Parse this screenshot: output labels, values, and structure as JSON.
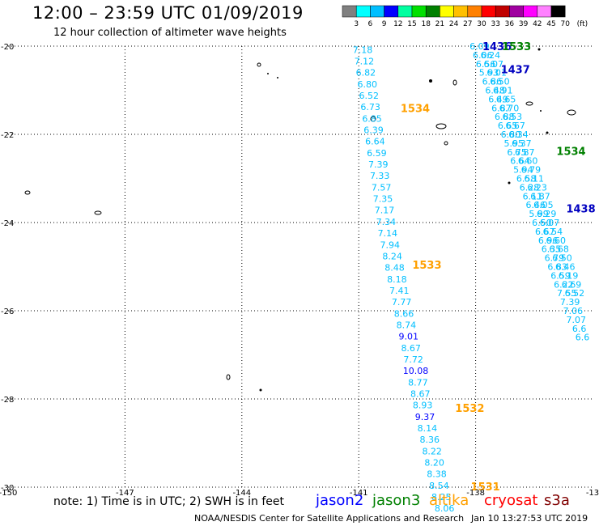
{
  "header": {
    "title": "12:00 – 23:59 UTC 01/09/2019",
    "subtitle": "12 hour collection of altimeter wave heights"
  },
  "colorbar": {
    "colors": [
      "#808080",
      "#00ffff",
      "#00bfff",
      "#0000ff",
      "#00ffa0",
      "#00e000",
      "#008000",
      "#ffff00",
      "#ffc000",
      "#ff8000",
      "#ff0000",
      "#c00000",
      "#a000a0",
      "#ff00ff",
      "#ff80ff",
      "#000000"
    ],
    "labels": [
      "3",
      "6",
      "9",
      "12",
      "15",
      "18",
      "21",
      "24",
      "27",
      "30",
      "33",
      "36",
      "39",
      "42",
      "45",
      "70",
      "(ft)"
    ]
  },
  "chart_data": {
    "type": "scatter",
    "x_ticks": [
      "-150",
      "-147",
      "-144",
      "-141",
      "-138",
      "-13"
    ],
    "y_ticks": [
      "-20",
      "-22",
      "-24",
      "-26",
      "-28",
      "-30"
    ],
    "xlim": [
      -150,
      -135
    ],
    "ylim": [
      -30,
      -20
    ],
    "grid": true,
    "track_points": [
      {
        "lon": -140.9,
        "lat": -20.08,
        "label": "7.18",
        "color": "#00bfff"
      },
      {
        "lon": -140.86,
        "lat": -20.34,
        "label": "7.12",
        "color": "#00bfff"
      },
      {
        "lon": -140.82,
        "lat": -20.6,
        "label": "6.82",
        "color": "#00bfff"
      },
      {
        "lon": -140.78,
        "lat": -20.86,
        "label": "6.80",
        "color": "#00bfff"
      },
      {
        "lon": -140.74,
        "lat": -21.12,
        "label": "6.52",
        "color": "#00bfff"
      },
      {
        "lon": -140.7,
        "lat": -21.38,
        "label": "6.73",
        "color": "#00bfff"
      },
      {
        "lon": -140.66,
        "lat": -21.64,
        "label": "6.85",
        "color": "#00bfff"
      },
      {
        "lon": -140.62,
        "lat": -21.9,
        "label": "6.39",
        "color": "#00bfff"
      },
      {
        "lon": -140.58,
        "lat": -22.16,
        "label": "6.64",
        "color": "#00bfff"
      },
      {
        "lon": -140.54,
        "lat": -22.42,
        "label": "6.59",
        "color": "#00bfff"
      },
      {
        "lon": -140.5,
        "lat": -22.68,
        "label": "7.39",
        "color": "#00bfff"
      },
      {
        "lon": -140.46,
        "lat": -22.94,
        "label": "7.33",
        "color": "#00bfff"
      },
      {
        "lon": -140.42,
        "lat": -23.2,
        "label": "7.57",
        "color": "#00bfff"
      },
      {
        "lon": -140.38,
        "lat": -23.46,
        "label": "7.35",
        "color": "#00bfff"
      },
      {
        "lon": -140.34,
        "lat": -23.72,
        "label": "7.17",
        "color": "#00bfff"
      },
      {
        "lon": -140.3,
        "lat": -23.98,
        "label": "7.34",
        "color": "#00bfff"
      },
      {
        "lon": -140.26,
        "lat": -24.24,
        "label": "7.14",
        "color": "#00bfff"
      },
      {
        "lon": -140.2,
        "lat": -24.5,
        "label": "7.94",
        "color": "#00bfff"
      },
      {
        "lon": -140.14,
        "lat": -24.76,
        "label": "8.24",
        "color": "#00bfff"
      },
      {
        "lon": -140.08,
        "lat": -25.02,
        "label": "8.48",
        "color": "#00bfff"
      },
      {
        "lon": -140.02,
        "lat": -25.28,
        "label": "8.18",
        "color": "#00bfff"
      },
      {
        "lon": -139.96,
        "lat": -25.54,
        "label": "7.41",
        "color": "#00bfff"
      },
      {
        "lon": -139.9,
        "lat": -25.8,
        "label": "7.77",
        "color": "#00bfff"
      },
      {
        "lon": -139.84,
        "lat": -26.06,
        "label": "8.66",
        "color": "#00bfff"
      },
      {
        "lon": -139.78,
        "lat": -26.32,
        "label": "8.74",
        "color": "#00bfff"
      },
      {
        "lon": -139.72,
        "lat": -26.58,
        "label": "9.01",
        "color": "#0000ff"
      },
      {
        "lon": -139.66,
        "lat": -26.84,
        "label": "8.67",
        "color": "#00bfff"
      },
      {
        "lon": -139.6,
        "lat": -27.1,
        "label": "7.72",
        "color": "#00bfff"
      },
      {
        "lon": -139.54,
        "lat": -27.36,
        "label": "10.08",
        "color": "#0000ff"
      },
      {
        "lon": -139.48,
        "lat": -27.62,
        "label": "8.77",
        "color": "#00bfff"
      },
      {
        "lon": -139.42,
        "lat": -27.88,
        "label": "8.67",
        "color": "#00bfff"
      },
      {
        "lon": -139.36,
        "lat": -28.14,
        "label": "8.93",
        "color": "#00bfff"
      },
      {
        "lon": -139.3,
        "lat": -28.4,
        "label": "9.37",
        "color": "#0000ff"
      },
      {
        "lon": -139.24,
        "lat": -28.66,
        "label": "8.14",
        "color": "#00bfff"
      },
      {
        "lon": -139.18,
        "lat": -28.92,
        "label": "8.36",
        "color": "#00bfff"
      },
      {
        "lon": -139.12,
        "lat": -29.18,
        "label": "8.22",
        "color": "#00bfff"
      },
      {
        "lon": -139.06,
        "lat": -29.44,
        "label": "8.20",
        "color": "#00bfff"
      },
      {
        "lon": -139.0,
        "lat": -29.7,
        "label": "8.38",
        "color": "#00bfff"
      },
      {
        "lon": -138.94,
        "lat": -29.96,
        "label": "8.54",
        "color": "#00bfff"
      },
      {
        "lon": -138.88,
        "lat": -30.22,
        "label": "8.25",
        "color": "#00bfff"
      },
      {
        "lon": -138.8,
        "lat": -30.48,
        "label": "8.06",
        "color": "#00bfff"
      },
      {
        "lon": -137.9,
        "lat": -20.0,
        "label": "6.09",
        "color": "#00bfff"
      },
      {
        "lon": -137.82,
        "lat": -20.2,
        "label": "6.06",
        "color": "#00bfff"
      },
      {
        "lon": -137.62,
        "lat": -20.2,
        "label": "6.24",
        "color": "#00bfff"
      },
      {
        "lon": -137.74,
        "lat": -20.4,
        "label": "6.56",
        "color": "#00bfff"
      },
      {
        "lon": -137.54,
        "lat": -20.4,
        "label": "6.07",
        "color": "#00bfff"
      },
      {
        "lon": -137.66,
        "lat": -20.6,
        "label": "5.93",
        "color": "#00bfff"
      },
      {
        "lon": -137.46,
        "lat": -20.6,
        "label": "6.01",
        "color": "#00bfff"
      },
      {
        "lon": -137.58,
        "lat": -20.8,
        "label": "6.86",
        "color": "#00bfff"
      },
      {
        "lon": -137.38,
        "lat": -20.8,
        "label": "6.50",
        "color": "#00bfff"
      },
      {
        "lon": -137.5,
        "lat": -21.0,
        "label": "6.48",
        "color": "#00bfff"
      },
      {
        "lon": -137.3,
        "lat": -21.0,
        "label": "6.91",
        "color": "#00bfff"
      },
      {
        "lon": -137.42,
        "lat": -21.2,
        "label": "6.49",
        "color": "#00bfff"
      },
      {
        "lon": -137.22,
        "lat": -21.2,
        "label": "6.65",
        "color": "#00bfff"
      },
      {
        "lon": -137.34,
        "lat": -21.4,
        "label": "6.87",
        "color": "#00bfff"
      },
      {
        "lon": -137.14,
        "lat": -21.4,
        "label": "6.70",
        "color": "#00bfff"
      },
      {
        "lon": -137.26,
        "lat": -21.6,
        "label": "6.88",
        "color": "#00bfff"
      },
      {
        "lon": -137.06,
        "lat": -21.6,
        "label": "6.53",
        "color": "#00bfff"
      },
      {
        "lon": -137.18,
        "lat": -21.8,
        "label": "6.65",
        "color": "#00bfff"
      },
      {
        "lon": -136.98,
        "lat": -21.8,
        "label": "6.67",
        "color": "#00bfff"
      },
      {
        "lon": -137.1,
        "lat": -22.0,
        "label": "6.80",
        "color": "#00bfff"
      },
      {
        "lon": -136.9,
        "lat": -22.0,
        "label": "6.34",
        "color": "#00bfff"
      },
      {
        "lon": -137.02,
        "lat": -22.2,
        "label": "5.95",
        "color": "#00bfff"
      },
      {
        "lon": -136.82,
        "lat": -22.2,
        "label": "6.37",
        "color": "#00bfff"
      },
      {
        "lon": -136.94,
        "lat": -22.4,
        "label": "6.75",
        "color": "#00bfff"
      },
      {
        "lon": -136.74,
        "lat": -22.4,
        "label": "6.87",
        "color": "#00bfff"
      },
      {
        "lon": -136.86,
        "lat": -22.6,
        "label": "6.64",
        "color": "#00bfff"
      },
      {
        "lon": -136.66,
        "lat": -22.6,
        "label": "6.60",
        "color": "#00bfff"
      },
      {
        "lon": -136.78,
        "lat": -22.8,
        "label": "5.94",
        "color": "#00bfff"
      },
      {
        "lon": -136.58,
        "lat": -22.8,
        "label": "6.79",
        "color": "#00bfff"
      },
      {
        "lon": -136.7,
        "lat": -23.0,
        "label": "6.58",
        "color": "#00bfff"
      },
      {
        "lon": -136.5,
        "lat": -23.0,
        "label": "6.11",
        "color": "#00bfff"
      },
      {
        "lon": -136.62,
        "lat": -23.2,
        "label": "6.28",
        "color": "#00bfff"
      },
      {
        "lon": -136.42,
        "lat": -23.2,
        "label": "6.23",
        "color": "#00bfff"
      },
      {
        "lon": -136.54,
        "lat": -23.4,
        "label": "6.11",
        "color": "#00bfff"
      },
      {
        "lon": -136.34,
        "lat": -23.4,
        "label": "6.87",
        "color": "#00bfff"
      },
      {
        "lon": -136.46,
        "lat": -23.6,
        "label": "6.46",
        "color": "#00bfff"
      },
      {
        "lon": -136.26,
        "lat": -23.6,
        "label": "6.05",
        "color": "#00bfff"
      },
      {
        "lon": -136.38,
        "lat": -23.8,
        "label": "5.99",
        "color": "#00bfff"
      },
      {
        "lon": -136.18,
        "lat": -23.8,
        "label": "6.29",
        "color": "#00bfff"
      },
      {
        "lon": -136.3,
        "lat": -24.0,
        "label": "6.50",
        "color": "#00bfff"
      },
      {
        "lon": -136.1,
        "lat": -24.0,
        "label": "6.07",
        "color": "#00bfff"
      },
      {
        "lon": -136.22,
        "lat": -24.2,
        "label": "6.67",
        "color": "#00bfff"
      },
      {
        "lon": -136.02,
        "lat": -24.2,
        "label": "6.54",
        "color": "#00bfff"
      },
      {
        "lon": -136.14,
        "lat": -24.4,
        "label": "6.96",
        "color": "#00bfff"
      },
      {
        "lon": -135.94,
        "lat": -24.4,
        "label": "6.60",
        "color": "#00bfff"
      },
      {
        "lon": -136.06,
        "lat": -24.6,
        "label": "6.35",
        "color": "#00bfff"
      },
      {
        "lon": -135.86,
        "lat": -24.6,
        "label": "6.68",
        "color": "#00bfff"
      },
      {
        "lon": -135.98,
        "lat": -24.8,
        "label": "6.79",
        "color": "#00bfff"
      },
      {
        "lon": -135.78,
        "lat": -24.8,
        "label": "6.50",
        "color": "#00bfff"
      },
      {
        "lon": -135.9,
        "lat": -25.0,
        "label": "6.83",
        "color": "#00bfff"
      },
      {
        "lon": -135.7,
        "lat": -25.0,
        "label": "6.46",
        "color": "#00bfff"
      },
      {
        "lon": -135.82,
        "lat": -25.2,
        "label": "6.59",
        "color": "#00bfff"
      },
      {
        "lon": -135.62,
        "lat": -25.2,
        "label": "6.19",
        "color": "#00bfff"
      },
      {
        "lon": -135.74,
        "lat": -25.4,
        "label": "6.22",
        "color": "#00bfff"
      },
      {
        "lon": -135.54,
        "lat": -25.4,
        "label": "6.69",
        "color": "#00bfff"
      },
      {
        "lon": -135.66,
        "lat": -25.6,
        "label": "7.55",
        "color": "#00bfff"
      },
      {
        "lon": -135.46,
        "lat": -25.6,
        "label": "6.52",
        "color": "#00bfff"
      },
      {
        "lon": -135.58,
        "lat": -25.8,
        "label": "7.39",
        "color": "#00bfff"
      },
      {
        "lon": -135.5,
        "lat": -26.0,
        "label": "7.06",
        "color": "#00bfff"
      },
      {
        "lon": -135.42,
        "lat": -26.2,
        "label": "7.07",
        "color": "#00bfff"
      },
      {
        "lon": -135.34,
        "lat": -26.4,
        "label": "6.6",
        "color": "#00bfff"
      },
      {
        "lon": -135.26,
        "lat": -26.6,
        "label": "6.6",
        "color": "#00bfff"
      }
    ],
    "pass_labels": [
      {
        "lon": -139.55,
        "lat": -21.4,
        "label": "1534",
        "color": "#ffa000"
      },
      {
        "lon": -139.25,
        "lat": -24.95,
        "label": "1533",
        "color": "#ffa000"
      },
      {
        "lon": -138.15,
        "lat": -28.2,
        "label": "1532",
        "color": "#ffa000"
      },
      {
        "lon": -137.75,
        "lat": -29.98,
        "label": "1531",
        "color": "#ffa000"
      },
      {
        "lon": -137.45,
        "lat": -20.0,
        "label": "1436",
        "color": "#0000c0"
      },
      {
        "lon": -136.95,
        "lat": -20.0,
        "label": "1533",
        "color": "#008000"
      },
      {
        "lon": -136.98,
        "lat": -20.52,
        "label": "1437",
        "color": "#0000c0"
      },
      {
        "lon": -135.55,
        "lat": -22.38,
        "label": "1534",
        "color": "#008000"
      },
      {
        "lon": -135.3,
        "lat": -23.68,
        "label": "1438",
        "color": "#0000c0"
      }
    ]
  },
  "footer": {
    "note": "note: 1) Time is in UTC; 2) SWH is in feet",
    "legend": [
      {
        "name": "jason2",
        "color": "#0000ff"
      },
      {
        "name": "jason3",
        "color": "#008000"
      },
      {
        "name": "altika",
        "color": "#ffa000"
      },
      {
        "name": "cryosat",
        "color": "#ff0000"
      },
      {
        "name": "s3a",
        "color": "#800000"
      }
    ],
    "credit": "NOAA/NESDIS Center for Satellite Applications and Research",
    "timestamp": "Jan 10 13:27:53 UTC 2019"
  }
}
